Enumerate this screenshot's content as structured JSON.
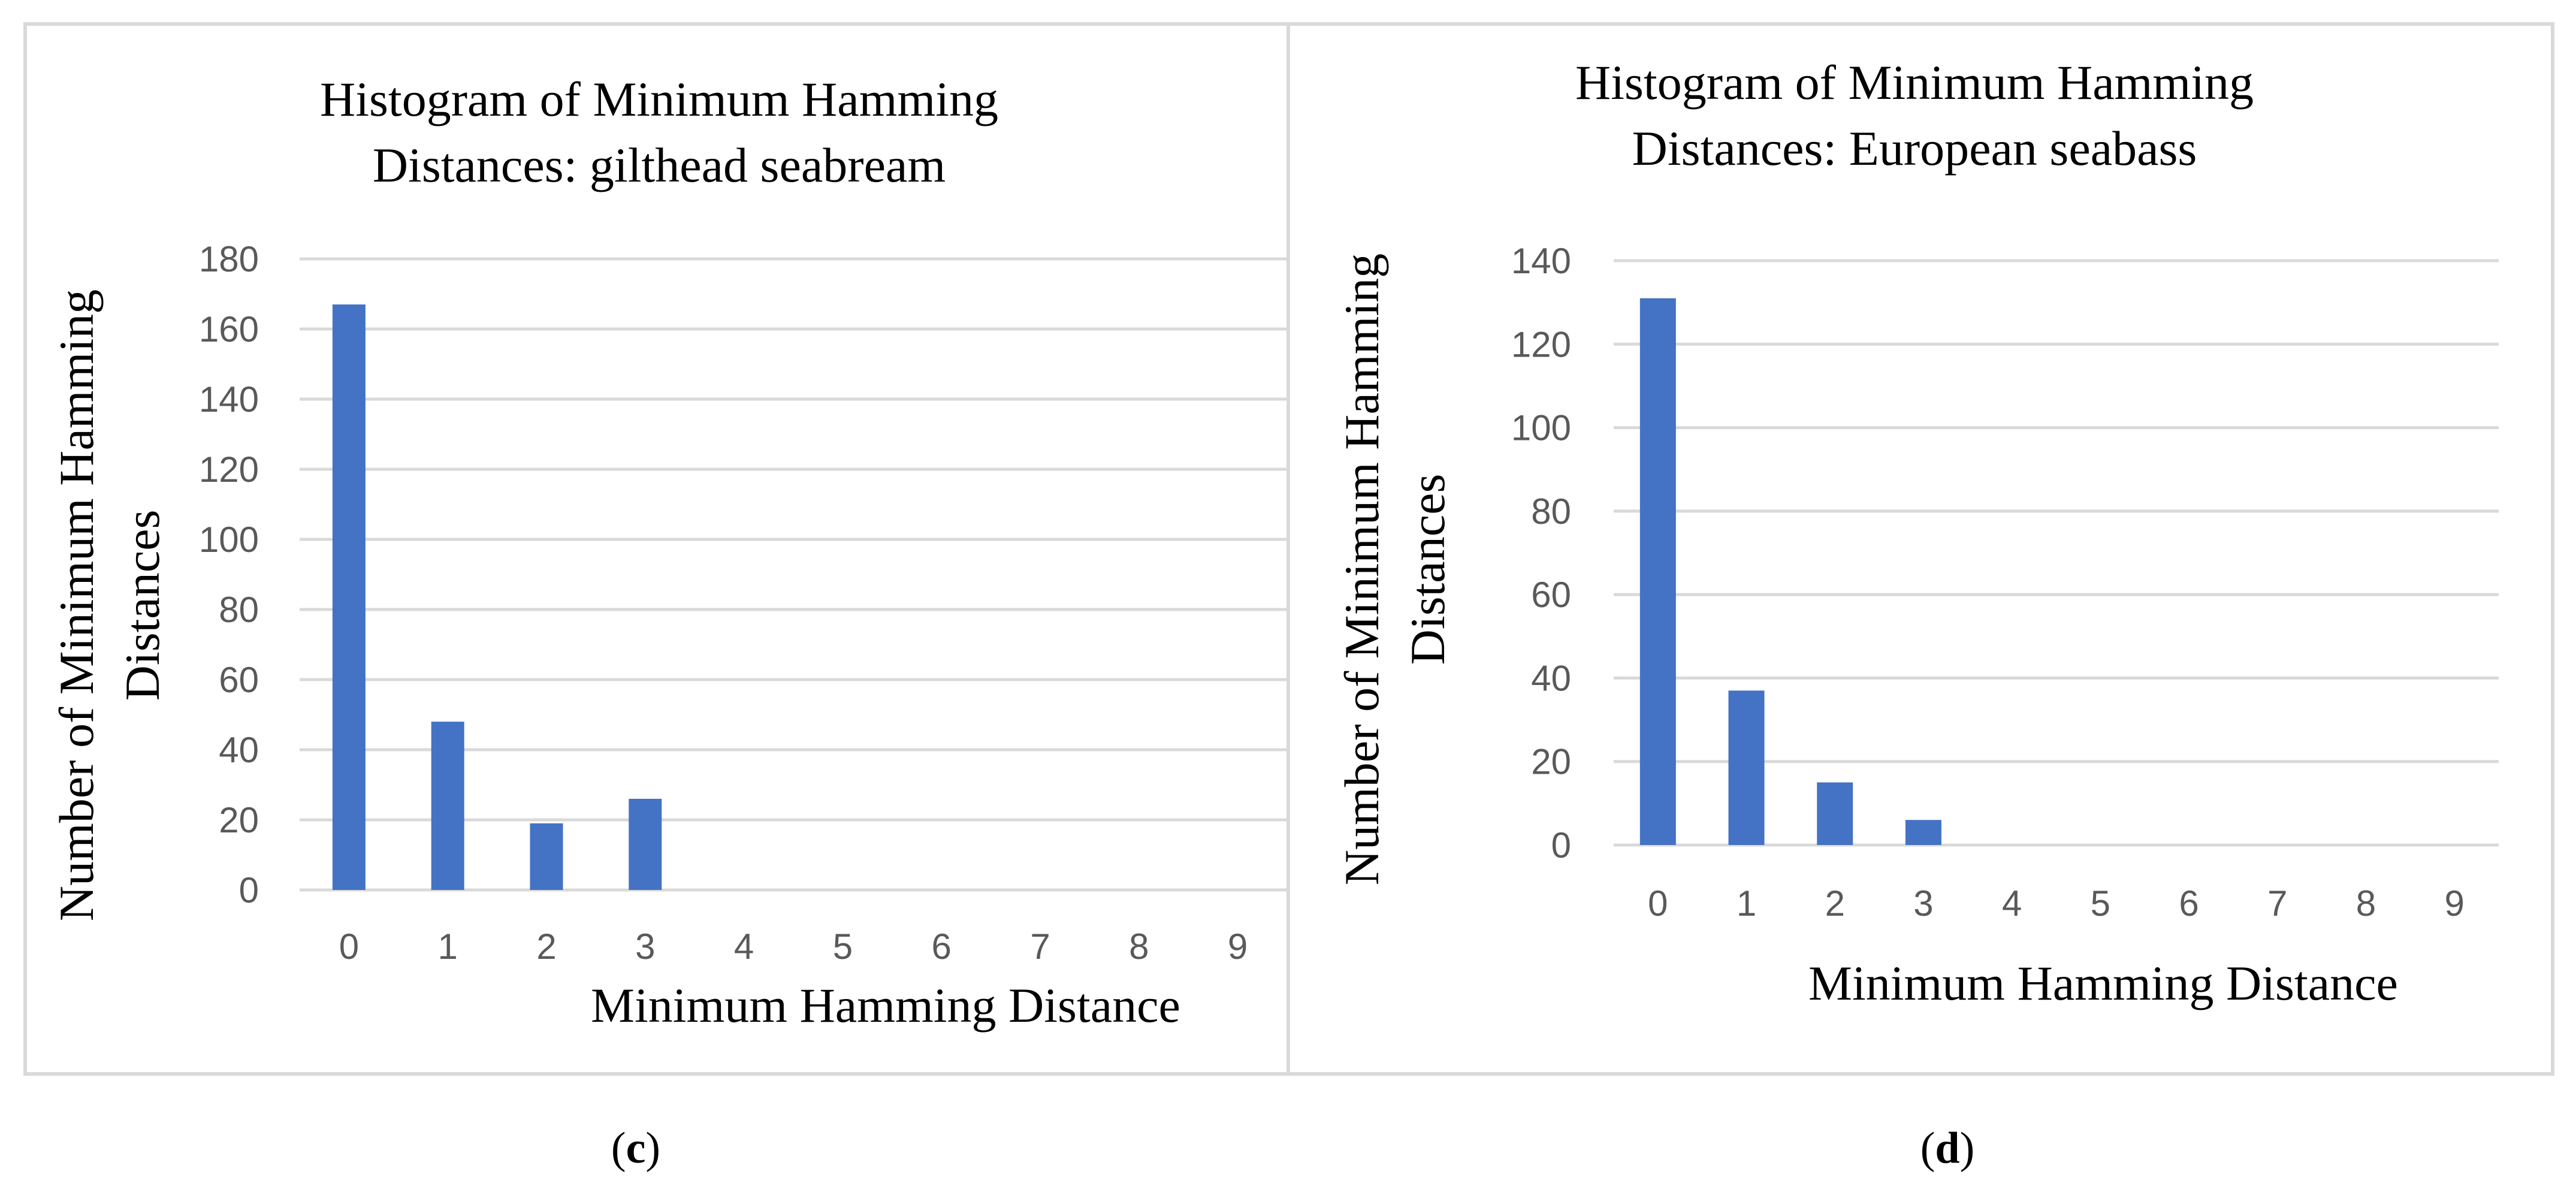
{
  "chart_data": [
    {
      "type": "bar",
      "panel_label": "c",
      "title_lines": [
        "Histogram of Minimum Hamming",
        "Distances: gilthead seabream"
      ],
      "xlabel": "Minimum Hamming Distance",
      "ylabel_lines": [
        "Number of Minimum Hamming",
        "Distances"
      ],
      "categories": [
        "0",
        "1",
        "2",
        "3",
        "4",
        "5",
        "6",
        "7",
        "8",
        "9"
      ],
      "values": [
        167,
        48,
        19,
        26,
        0,
        0,
        0,
        0,
        0,
        0
      ],
      "ylim": [
        0,
        180
      ],
      "yticks": [
        "0",
        "20",
        "40",
        "60",
        "80",
        "100",
        "120",
        "140",
        "160",
        "180"
      ],
      "grid": true,
      "bar_color": "#4472C4"
    },
    {
      "type": "bar",
      "panel_label": "d",
      "title_lines": [
        "Histogram of Minimum Hamming",
        "Distances: European seabass"
      ],
      "xlabel": "Minimum Hamming Distance",
      "ylabel_lines": [
        "Number of Minimum Hamming",
        "Distances"
      ],
      "categories": [
        "0",
        "1",
        "2",
        "3",
        "4",
        "5",
        "6",
        "7",
        "8",
        "9"
      ],
      "values": [
        131,
        37,
        15,
        6,
        0,
        0,
        0,
        0,
        0,
        0
      ],
      "ylim": [
        0,
        140
      ],
      "yticks": [
        "0",
        "20",
        "40",
        "60",
        "80",
        "100",
        "120",
        "140"
      ],
      "grid": true,
      "bar_color": "#4472C4"
    }
  ],
  "colors": {
    "gridline": "#D9D9D9",
    "border": "#D9D9D9",
    "tick_text": "#595959"
  }
}
